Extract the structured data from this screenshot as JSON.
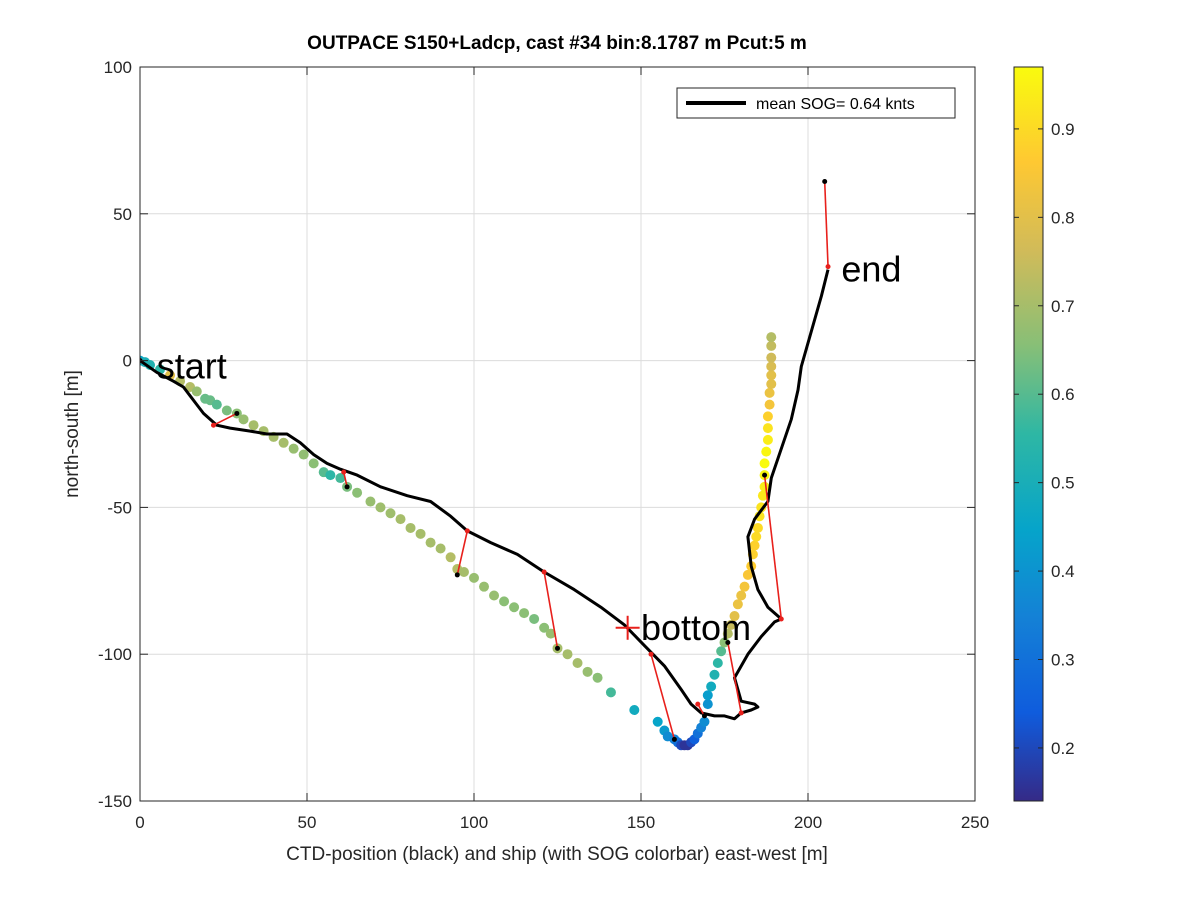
{
  "chart_data": {
    "type": "scatter",
    "title": "OUTPACE S150+Ladcp, cast #34 bin:8.1787 m  Pcut:5 m",
    "xlabel": "CTD-position (black) and ship (with SOG colorbar) east-west [m]",
    "ylabel": "north-south [m]",
    "xlim": [
      0,
      250
    ],
    "ylim": [
      -150,
      100
    ],
    "xticks": [
      0,
      50,
      100,
      150,
      200,
      250
    ],
    "yticks": [
      -150,
      -100,
      -50,
      0,
      50,
      100
    ],
    "grid": true,
    "legend": {
      "label": "mean SOG=  0.64 knts",
      "position": "top-right"
    },
    "colorbar": {
      "clim": [
        0.14,
        0.97
      ],
      "ticks": [
        0.2,
        0.3,
        0.4,
        0.5,
        0.6,
        0.7,
        0.8,
        0.9
      ],
      "colormap": "parula"
    },
    "annotations": [
      {
        "text": "start",
        "x": 5,
        "y": -2
      },
      {
        "text": "bottom",
        "x": 150,
        "y": -91
      },
      {
        "text": "end",
        "x": 210,
        "y": 31
      }
    ],
    "bottom_marker": {
      "x": 146,
      "y": -91
    },
    "ctd_track": [
      [
        0,
        0
      ],
      [
        5,
        -4
      ],
      [
        10,
        -7
      ],
      [
        13,
        -9
      ],
      [
        15,
        -12
      ],
      [
        17,
        -15
      ],
      [
        19,
        -18
      ],
      [
        21,
        -20
      ],
      [
        23,
        -22
      ],
      [
        27,
        -23
      ],
      [
        33,
        -24
      ],
      [
        38,
        -25
      ],
      [
        44,
        -25
      ],
      [
        48,
        -28
      ],
      [
        52,
        -32
      ],
      [
        56,
        -35
      ],
      [
        60,
        -37
      ],
      [
        65,
        -39
      ],
      [
        72,
        -43
      ],
      [
        80,
        -46
      ],
      [
        87,
        -48
      ],
      [
        93,
        -53
      ],
      [
        98,
        -58
      ],
      [
        105,
        -62
      ],
      [
        113,
        -66
      ],
      [
        121,
        -72
      ],
      [
        130,
        -78
      ],
      [
        138,
        -84
      ],
      [
        145,
        -90
      ],
      [
        151,
        -97
      ],
      [
        157,
        -104
      ],
      [
        162,
        -112
      ],
      [
        165,
        -117
      ],
      [
        168,
        -120
      ],
      [
        172,
        -121
      ],
      [
        175,
        -121
      ],
      [
        178,
        -122
      ],
      [
        180,
        -120
      ],
      [
        183,
        -119
      ],
      [
        185,
        -118
      ],
      [
        184,
        -117
      ],
      [
        180,
        -116
      ],
      [
        178,
        -108
      ],
      [
        182,
        -100
      ],
      [
        186,
        -94
      ],
      [
        190,
        -89
      ],
      [
        192,
        -88
      ],
      [
        188,
        -84
      ],
      [
        185,
        -78
      ],
      [
        183,
        -70
      ],
      [
        182,
        -60
      ],
      [
        184,
        -54
      ],
      [
        186,
        -51
      ],
      [
        188,
        -48
      ],
      [
        189,
        -40
      ],
      [
        192,
        -30
      ],
      [
        195,
        -20
      ],
      [
        197,
        -10
      ],
      [
        198,
        -2
      ],
      [
        200,
        6
      ],
      [
        202,
        14
      ],
      [
        204,
        22
      ],
      [
        206,
        31
      ]
    ],
    "ctd_samples": [
      {
        "ctd": [
          0,
          0
        ],
        "ship": [
          0,
          0
        ]
      },
      {
        "ctd": [
          22,
          -22
        ],
        "ship": [
          29,
          -18
        ]
      },
      {
        "ctd": [
          61,
          -38
        ],
        "ship": [
          62,
          -43
        ]
      },
      {
        "ctd": [
          98,
          -58
        ],
        "ship": [
          95,
          -73
        ]
      },
      {
        "ctd": [
          121,
          -72
        ],
        "ship": [
          125,
          -98
        ]
      },
      {
        "ctd": [
          153,
          -100
        ],
        "ship": [
          160,
          -129
        ]
      },
      {
        "ctd": [
          167,
          -117
        ],
        "ship": [
          169,
          -121
        ]
      },
      {
        "ctd": [
          180,
          -120
        ],
        "ship": [
          176,
          -96
        ]
      },
      {
        "ctd": [
          192,
          -88
        ],
        "ship": [
          187,
          -39
        ]
      },
      {
        "ctd": [
          206,
          32
        ],
        "ship": [
          205,
          61
        ]
      }
    ],
    "ship_track_sog": [
      [
        0,
        0,
        0.45
      ],
      [
        1.5,
        -0.5,
        0.5
      ],
      [
        3,
        -1.5,
        0.52
      ],
      [
        6,
        -3,
        0.55
      ],
      [
        9,
        -5,
        0.8
      ],
      [
        12,
        -7,
        0.72
      ],
      [
        15,
        -9,
        0.72
      ],
      [
        17,
        -10.5,
        0.68
      ],
      [
        19.5,
        -13,
        0.62
      ],
      [
        21,
        -13.5,
        0.62
      ],
      [
        23,
        -15,
        0.6
      ],
      [
        26,
        -17,
        0.64
      ],
      [
        29,
        -18,
        0.66
      ],
      [
        31,
        -20,
        0.68
      ],
      [
        34,
        -22,
        0.7
      ],
      [
        37,
        -24,
        0.7
      ],
      [
        40,
        -26,
        0.7
      ],
      [
        43,
        -28,
        0.7
      ],
      [
        46,
        -30,
        0.68
      ],
      [
        49,
        -32,
        0.67
      ],
      [
        52,
        -35,
        0.66
      ],
      [
        55,
        -38,
        0.6
      ],
      [
        57,
        -39,
        0.55
      ],
      [
        60,
        -40,
        0.58
      ],
      [
        62,
        -43,
        0.64
      ],
      [
        65,
        -45,
        0.66
      ],
      [
        69,
        -48,
        0.68
      ],
      [
        72,
        -50,
        0.69
      ],
      [
        75,
        -52,
        0.69
      ],
      [
        78,
        -54,
        0.7
      ],
      [
        81,
        -57,
        0.7
      ],
      [
        84,
        -59,
        0.7
      ],
      [
        87,
        -62,
        0.7
      ],
      [
        90,
        -64,
        0.7
      ],
      [
        93,
        -67,
        0.72
      ],
      [
        95,
        -71,
        0.72
      ],
      [
        97,
        -72,
        0.7
      ],
      [
        100,
        -74,
        0.68
      ],
      [
        103,
        -77,
        0.68
      ],
      [
        106,
        -80,
        0.68
      ],
      [
        109,
        -82,
        0.66
      ],
      [
        112,
        -84,
        0.66
      ],
      [
        115,
        -86,
        0.66
      ],
      [
        118,
        -88,
        0.64
      ],
      [
        121,
        -91,
        0.66
      ],
      [
        123,
        -93,
        0.68
      ],
      [
        125,
        -98,
        0.7
      ],
      [
        128,
        -100,
        0.7
      ],
      [
        131,
        -103,
        0.7
      ],
      [
        134,
        -106,
        0.68
      ],
      [
        137,
        -108,
        0.66
      ],
      [
        141,
        -113,
        0.58
      ],
      [
        148,
        -119,
        0.48
      ],
      [
        155,
        -123,
        0.45
      ],
      [
        157,
        -126,
        0.42
      ],
      [
        158,
        -128,
        0.38
      ],
      [
        160,
        -129,
        0.35
      ],
      [
        161,
        -130,
        0.3
      ],
      [
        162,
        -131,
        0.2
      ],
      [
        163,
        -131,
        0.16
      ],
      [
        164,
        -131,
        0.16
      ],
      [
        165,
        -130,
        0.2
      ],
      [
        166,
        -129,
        0.25
      ],
      [
        167,
        -127,
        0.3
      ],
      [
        168,
        -125,
        0.35
      ],
      [
        169,
        -123,
        0.38
      ],
      [
        170,
        -117,
        0.4
      ],
      [
        170,
        -114,
        0.43
      ],
      [
        171,
        -111,
        0.48
      ],
      [
        172,
        -107,
        0.52
      ],
      [
        173,
        -103,
        0.55
      ],
      [
        174,
        -99,
        0.6
      ],
      [
        175,
        -96,
        0.66
      ],
      [
        176,
        -93,
        0.72
      ],
      [
        177,
        -90,
        0.75
      ],
      [
        178,
        -87,
        0.8
      ],
      [
        179,
        -83,
        0.82
      ],
      [
        180,
        -80,
        0.82
      ],
      [
        181,
        -77,
        0.84
      ],
      [
        182,
        -73,
        0.85
      ],
      [
        183,
        -70,
        0.87
      ],
      [
        183.5,
        -66,
        0.88
      ],
      [
        184,
        -63,
        0.88
      ],
      [
        184.5,
        -60,
        0.9
      ],
      [
        185,
        -57,
        0.9
      ],
      [
        185.5,
        -53,
        0.92
      ],
      [
        186,
        -50,
        0.92
      ],
      [
        186.5,
        -46,
        0.93
      ],
      [
        187,
        -43,
        0.94
      ],
      [
        187,
        -39,
        0.96
      ],
      [
        187,
        -35,
        0.97
      ],
      [
        187.5,
        -31,
        0.96
      ],
      [
        188,
        -27,
        0.94
      ],
      [
        188,
        -23,
        0.92
      ],
      [
        188,
        -19,
        0.88
      ],
      [
        188.5,
        -15,
        0.84
      ],
      [
        188.5,
        -11,
        0.82
      ],
      [
        189,
        -8,
        0.8
      ],
      [
        189,
        -5,
        0.8
      ],
      [
        189,
        -2,
        0.78
      ],
      [
        189,
        1,
        0.76
      ],
      [
        189,
        5,
        0.74
      ],
      [
        189,
        8,
        0.72
      ]
    ]
  }
}
